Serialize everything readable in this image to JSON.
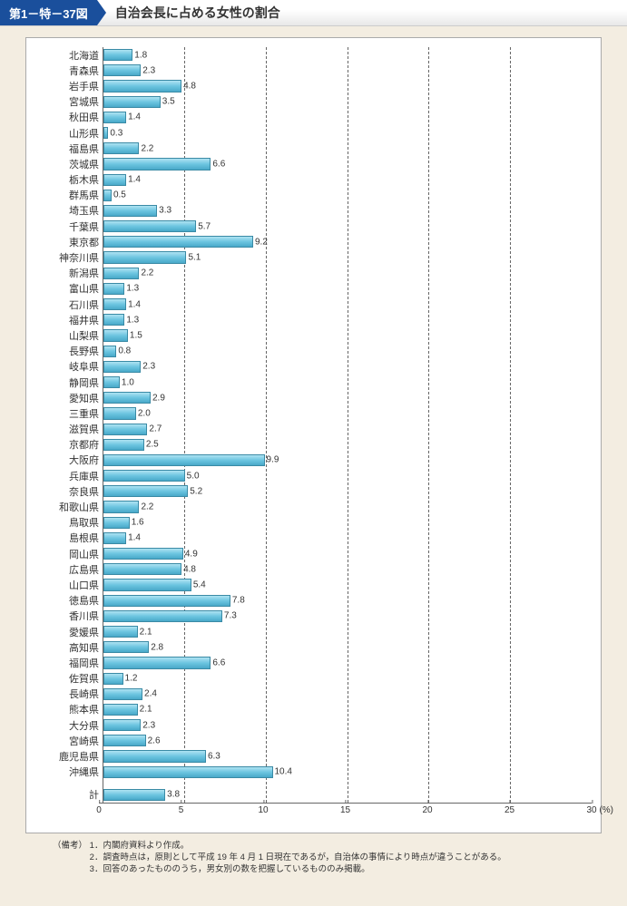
{
  "header": {
    "tag": "第1－特－37図",
    "title": "自治会長に占める女性の割合"
  },
  "chart": {
    "type": "bar",
    "orientation": "horizontal",
    "xlim": [
      0,
      30
    ],
    "xtick_step": 5,
    "xticks": [
      0,
      5,
      10,
      15,
      20,
      25,
      30
    ],
    "x_unit": "(%)",
    "bar_fill_top": "#aee3f2",
    "bar_fill_mid": "#6cc5e0",
    "bar_fill_bot": "#49a9c9",
    "bar_border": "#3a8aa5",
    "grid_color": "#666666",
    "background": "#ffffff",
    "page_background": "#f3ede1",
    "label_fontsize": 11,
    "value_fontsize": 10,
    "tick_fontsize": 10,
    "items": [
      {
        "label": "北海道",
        "value": 1.8
      },
      {
        "label": "青森県",
        "value": 2.3
      },
      {
        "label": "岩手県",
        "value": 4.8
      },
      {
        "label": "宮城県",
        "value": 3.5
      },
      {
        "label": "秋田県",
        "value": 1.4
      },
      {
        "label": "山形県",
        "value": 0.3
      },
      {
        "label": "福島県",
        "value": 2.2
      },
      {
        "label": "茨城県",
        "value": 6.6
      },
      {
        "label": "栃木県",
        "value": 1.4
      },
      {
        "label": "群馬県",
        "value": 0.5
      },
      {
        "label": "埼玉県",
        "value": 3.3
      },
      {
        "label": "千葉県",
        "value": 5.7
      },
      {
        "label": "東京都",
        "value": 9.2
      },
      {
        "label": "神奈川県",
        "value": 5.1
      },
      {
        "label": "新潟県",
        "value": 2.2
      },
      {
        "label": "富山県",
        "value": 1.3
      },
      {
        "label": "石川県",
        "value": 1.4
      },
      {
        "label": "福井県",
        "value": 1.3
      },
      {
        "label": "山梨県",
        "value": 1.5
      },
      {
        "label": "長野県",
        "value": 0.8
      },
      {
        "label": "岐阜県",
        "value": 2.3
      },
      {
        "label": "静岡県",
        "value": 1.0
      },
      {
        "label": "愛知県",
        "value": 2.9
      },
      {
        "label": "三重県",
        "value": 2.0
      },
      {
        "label": "滋賀県",
        "value": 2.7
      },
      {
        "label": "京都府",
        "value": 2.5
      },
      {
        "label": "大阪府",
        "value": 9.9
      },
      {
        "label": "兵庫県",
        "value": 5.0
      },
      {
        "label": "奈良県",
        "value": 5.2
      },
      {
        "label": "和歌山県",
        "value": 2.2
      },
      {
        "label": "鳥取県",
        "value": 1.6
      },
      {
        "label": "島根県",
        "value": 1.4
      },
      {
        "label": "岡山県",
        "value": 4.9
      },
      {
        "label": "広島県",
        "value": 4.8
      },
      {
        "label": "山口県",
        "value": 5.4
      },
      {
        "label": "徳島県",
        "value": 7.8
      },
      {
        "label": "香川県",
        "value": 7.3
      },
      {
        "label": "愛媛県",
        "value": 2.1
      },
      {
        "label": "高知県",
        "value": 2.8
      },
      {
        "label": "福岡県",
        "value": 6.6
      },
      {
        "label": "佐賀県",
        "value": 1.2
      },
      {
        "label": "長崎県",
        "value": 2.4
      },
      {
        "label": "熊本県",
        "value": 2.1
      },
      {
        "label": "大分県",
        "value": 2.3
      },
      {
        "label": "宮崎県",
        "value": 2.6
      },
      {
        "label": "鹿児島県",
        "value": 6.3
      },
      {
        "label": "沖縄県",
        "value": 10.4
      }
    ],
    "total": {
      "label": "計",
      "value": 3.8
    }
  },
  "notes": {
    "label": "（備考）",
    "lines": [
      "1．内閣府資料より作成。",
      "2．調査時点は，原則として平成 19 年 4 月 1 日現在であるが，自治体の事情により時点が違うことがある。",
      "3．回答のあったもののうち，男女別の数を把握しているもののみ掲載。"
    ]
  }
}
